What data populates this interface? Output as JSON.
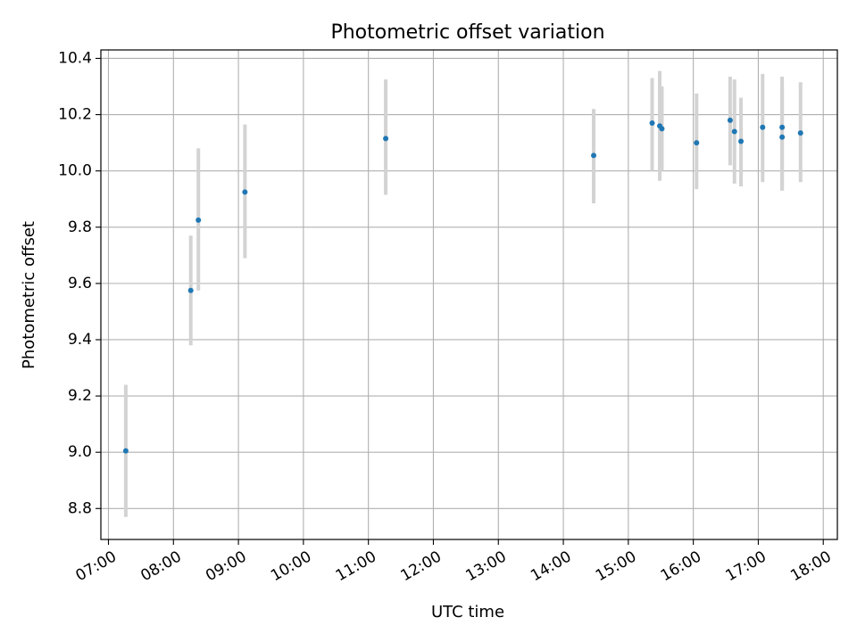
{
  "chart_data": {
    "type": "scatter",
    "title": "Photometric offset variation",
    "xlabel": "UTC time",
    "ylabel": "Photometric offset",
    "xlim": [
      "06:53",
      "18:13"
    ],
    "ylim": [
      8.69,
      10.43
    ],
    "grid": true,
    "x_ticks": [
      "07:00",
      "08:00",
      "09:00",
      "10:00",
      "11:00",
      "12:00",
      "13:00",
      "14:00",
      "15:00",
      "16:00",
      "17:00",
      "18:00"
    ],
    "y_ticks": [
      "8.8",
      "9.0",
      "9.2",
      "9.4",
      "9.6",
      "9.8",
      "10.0",
      "10.2",
      "10.4"
    ],
    "errorbar_color": "#d3d3d3",
    "marker_color": "#1f77b4",
    "points": [
      {
        "x": "07:16",
        "y": 9.005,
        "yerr_low": 8.77,
        "yerr_high": 9.24
      },
      {
        "x": "08:16",
        "y": 9.575,
        "yerr_low": 9.38,
        "yerr_high": 9.77
      },
      {
        "x": "08:23",
        "y": 9.825,
        "yerr_low": 9.575,
        "yerr_high": 10.08
      },
      {
        "x": "09:06",
        "y": 9.925,
        "yerr_low": 9.69,
        "yerr_high": 10.165
      },
      {
        "x": "11:16",
        "y": 10.115,
        "yerr_low": 9.915,
        "yerr_high": 10.325
      },
      {
        "x": "14:28",
        "y": 10.055,
        "yerr_low": 9.885,
        "yerr_high": 10.22
      },
      {
        "x": "15:22",
        "y": 10.17,
        "yerr_low": 10.0,
        "yerr_high": 10.33
      },
      {
        "x": "15:29",
        "y": 10.16,
        "yerr_low": 9.965,
        "yerr_high": 10.355
      },
      {
        "x": "15:31",
        "y": 10.15,
        "yerr_low": 10.0,
        "yerr_high": 10.3
      },
      {
        "x": "16:03",
        "y": 10.1,
        "yerr_low": 9.935,
        "yerr_high": 10.275
      },
      {
        "x": "16:34",
        "y": 10.18,
        "yerr_low": 10.02,
        "yerr_high": 10.335
      },
      {
        "x": "16:38",
        "y": 10.14,
        "yerr_low": 9.955,
        "yerr_high": 10.325
      },
      {
        "x": "16:44",
        "y": 10.105,
        "yerr_low": 9.945,
        "yerr_high": 10.26
      },
      {
        "x": "17:04",
        "y": 10.155,
        "yerr_low": 9.96,
        "yerr_high": 10.345
      },
      {
        "x": "17:22",
        "y": 10.155,
        "yerr_low": 9.93,
        "yerr_high": 10.335
      },
      {
        "x": "17:22",
        "y": 10.12,
        "yerr_low": 9.93,
        "yerr_high": 10.3
      },
      {
        "x": "17:39",
        "y": 10.135,
        "yerr_low": 9.96,
        "yerr_high": 10.315
      }
    ]
  }
}
